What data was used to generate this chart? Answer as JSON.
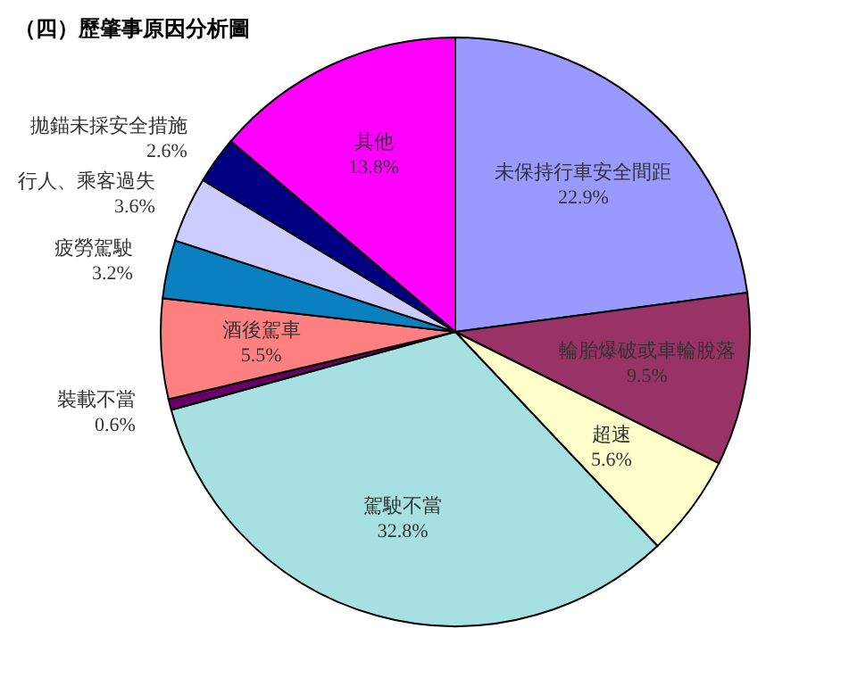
{
  "chart_data": {
    "type": "pie",
    "title": "（四）歷肇事原因分析圖",
    "categories": [
      "未保持行車安全間距",
      "輪胎爆破或車輪脫落",
      "超速",
      "駕駛不當",
      "裝載不當",
      "酒後駕車",
      "疲勞駕駛",
      "行人、乘客過失",
      "拋錨未採安全措施",
      "其他"
    ],
    "values": [
      22.9,
      9.5,
      5.6,
      32.8,
      0.6,
      5.5,
      3.2,
      3.6,
      2.6,
      13.8
    ],
    "colors": [
      "#9999ff",
      "#993366",
      "#ffffcc",
      "#a6e0e0",
      "#660066",
      "#ff8080",
      "#0a80c0",
      "#ccccff",
      "#000080",
      "#ff00ff"
    ],
    "value_labels": [
      "22.9%",
      "9.5%",
      "5.6%",
      "32.8%",
      "0.6%",
      "5.5%",
      "3.2%",
      "3.6%",
      "2.6%",
      "13.8%"
    ]
  }
}
